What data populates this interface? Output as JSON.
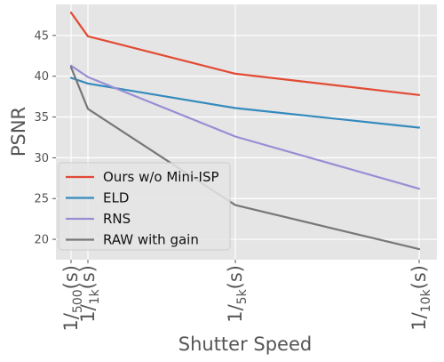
{
  "chart_data": {
    "type": "line",
    "title": "",
    "xlabel": "Shutter Speed",
    "ylabel": "PSNR",
    "x_values": [
      500,
      1000,
      5000,
      10000
    ],
    "x_tick_labels": [
      {
        "pre": "1/",
        "sub": "500",
        "post": "(s)"
      },
      {
        "pre": "1/",
        "sub": "1k",
        "post": "(s)"
      },
      {
        "pre": "1/",
        "sub": "5k",
        "post": "(s)"
      },
      {
        "pre": "1/",
        "sub": "10k",
        "post": "(s)"
      }
    ],
    "y_ticks": [
      "20",
      "25",
      "30",
      "35",
      "40",
      "45"
    ],
    "ylim": [
      17.5,
      48.8
    ],
    "grid": true,
    "legend_position": "lower-left",
    "series": [
      {
        "name": "Ours w/o Mini-ISP",
        "color": "#E24A33",
        "values": [
          47.8,
          44.9,
          40.3,
          37.7
        ]
      },
      {
        "name": "ELD",
        "color": "#348ABD",
        "values": [
          39.8,
          39.1,
          36.1,
          33.7
        ]
      },
      {
        "name": "RNS",
        "color": "#988ED5",
        "values": [
          41.3,
          39.9,
          32.6,
          26.2
        ]
      },
      {
        "name": "RAW with gain",
        "color": "#777777",
        "values": [
          41.1,
          36.0,
          24.2,
          18.8
        ]
      }
    ]
  }
}
